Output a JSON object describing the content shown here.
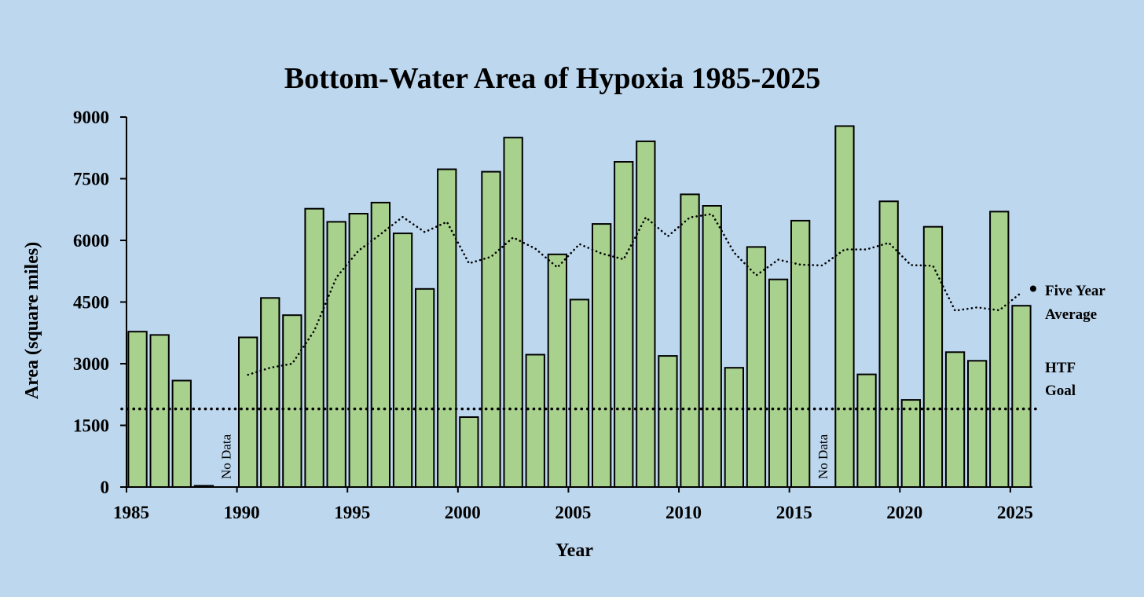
{
  "chart_data": {
    "type": "bar",
    "title": "Bottom-Water Area of Hypoxia 1985-2025",
    "xlabel": "Year",
    "ylabel": "Area (square miles)",
    "ylim": [
      0,
      9000
    ],
    "yticks": [
      "0",
      "1500",
      "3000",
      "4500",
      "6000",
      "7500",
      "9000"
    ],
    "xticks": [
      "1985",
      "1990",
      "1995",
      "2000",
      "2005",
      "2010",
      "2015",
      "2020",
      "2025"
    ],
    "years": [
      1985,
      1986,
      1987,
      1988,
      1989,
      1990,
      1991,
      1992,
      1993,
      1994,
      1995,
      1996,
      1997,
      1998,
      1999,
      2000,
      2001,
      2002,
      2003,
      2004,
      2005,
      2006,
      2007,
      2008,
      2009,
      2010,
      2011,
      2012,
      2013,
      2014,
      2015,
      2016,
      2017,
      2018,
      2019,
      2020,
      2021,
      2022,
      2023,
      2024,
      2025
    ],
    "series": [
      {
        "values": [
          3780,
          3700,
          2590,
          30,
          null,
          3640,
          4600,
          4180,
          6770,
          6450,
          6650,
          6920,
          6170,
          4820,
          7730,
          1700,
          7670,
          8500,
          3220,
          5660,
          4560,
          6400,
          7910,
          8410,
          3190,
          7120,
          6840,
          2900,
          5840,
          5050,
          6480,
          null,
          8780,
          2740,
          6950,
          2120,
          6330,
          3280,
          3070,
          6700,
          4410
        ]
      },
      {
        "name": "Five Year Average",
        "style": "dotted",
        "years": [
          1990,
          1991,
          1992,
          1993,
          1994,
          1995,
          1996,
          1997,
          1998,
          1999,
          2000,
          2001,
          2002,
          2003,
          2004,
          2005,
          2006,
          2007,
          2008,
          2009,
          2010,
          2011,
          2012,
          2013,
          2014,
          2015,
          2016,
          2017,
          2018,
          2019,
          2020,
          2021,
          2022,
          2023,
          2024,
          2025
        ],
        "values": [
          2730,
          2900,
          3000,
          3800,
          5100,
          5750,
          6150,
          6570,
          6200,
          6450,
          5440,
          5600,
          6070,
          5800,
          5340,
          5910,
          5680,
          5540,
          6560,
          6100,
          6560,
          6640,
          5700,
          5150,
          5530,
          5410,
          5390,
          5780,
          5780,
          5940,
          5400,
          5380,
          4290,
          4370,
          4300,
          4730
        ]
      },
      {
        "name": "HTF Goal",
        "style": "dotted",
        "value": 1900
      }
    ],
    "annotations": [
      {
        "text": "No Data",
        "year": 1989
      },
      {
        "text": "No Data",
        "year": 2016
      }
    ],
    "legend": [
      {
        "line1": "Five Year",
        "line2": "Average"
      },
      {
        "line1": "HTF",
        "line2": "Goal"
      }
    ],
    "grid": false,
    "colors": {
      "background": "#bdd7ee",
      "bar": "#a9d18e",
      "outline": "#000000"
    }
  }
}
